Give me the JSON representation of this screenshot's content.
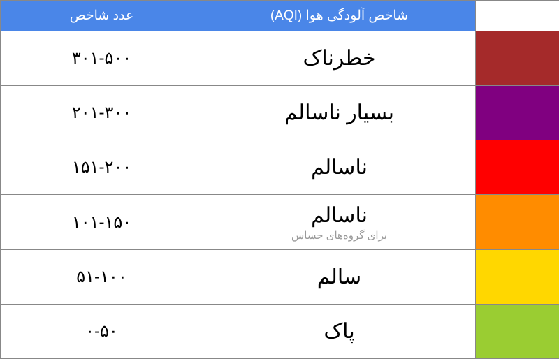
{
  "table": {
    "header": {
      "range": "عدد شاخص",
      "level": "شاخص آلودگی هوا (AQI)",
      "bg_color": "#4a86e8",
      "text_color": "#ffffff"
    },
    "rows": [
      {
        "range": "۳۰۱-۵۰۰",
        "level": "خطرناک",
        "sublabel": "",
        "color": "#a52a2a"
      },
      {
        "range": "۲۰۱-۳۰۰",
        "level": "بسیار ناسالم",
        "sublabel": "",
        "color": "#800080"
      },
      {
        "range": "۱۵۱-۲۰۰",
        "level": "ناسالم",
        "sublabel": "",
        "color": "#ff0000"
      },
      {
        "range": "۱۰۱-۱۵۰",
        "level": "ناسالم",
        "sublabel": "برای گروه‌های حساس",
        "color": "#ff8c00"
      },
      {
        "range": "۵۱-۱۰۰",
        "level": "سالم",
        "sublabel": "",
        "color": "#ffd700"
      },
      {
        "range": "۰-۵۰",
        "level": "پاک",
        "sublabel": "",
        "color": "#9acd32"
      }
    ],
    "border_color": "#888888",
    "range_fontsize": 24,
    "level_fontsize": 30,
    "header_fontsize": 19,
    "sublabel_fontsize": 15,
    "sublabel_color": "#9a9a9a"
  }
}
